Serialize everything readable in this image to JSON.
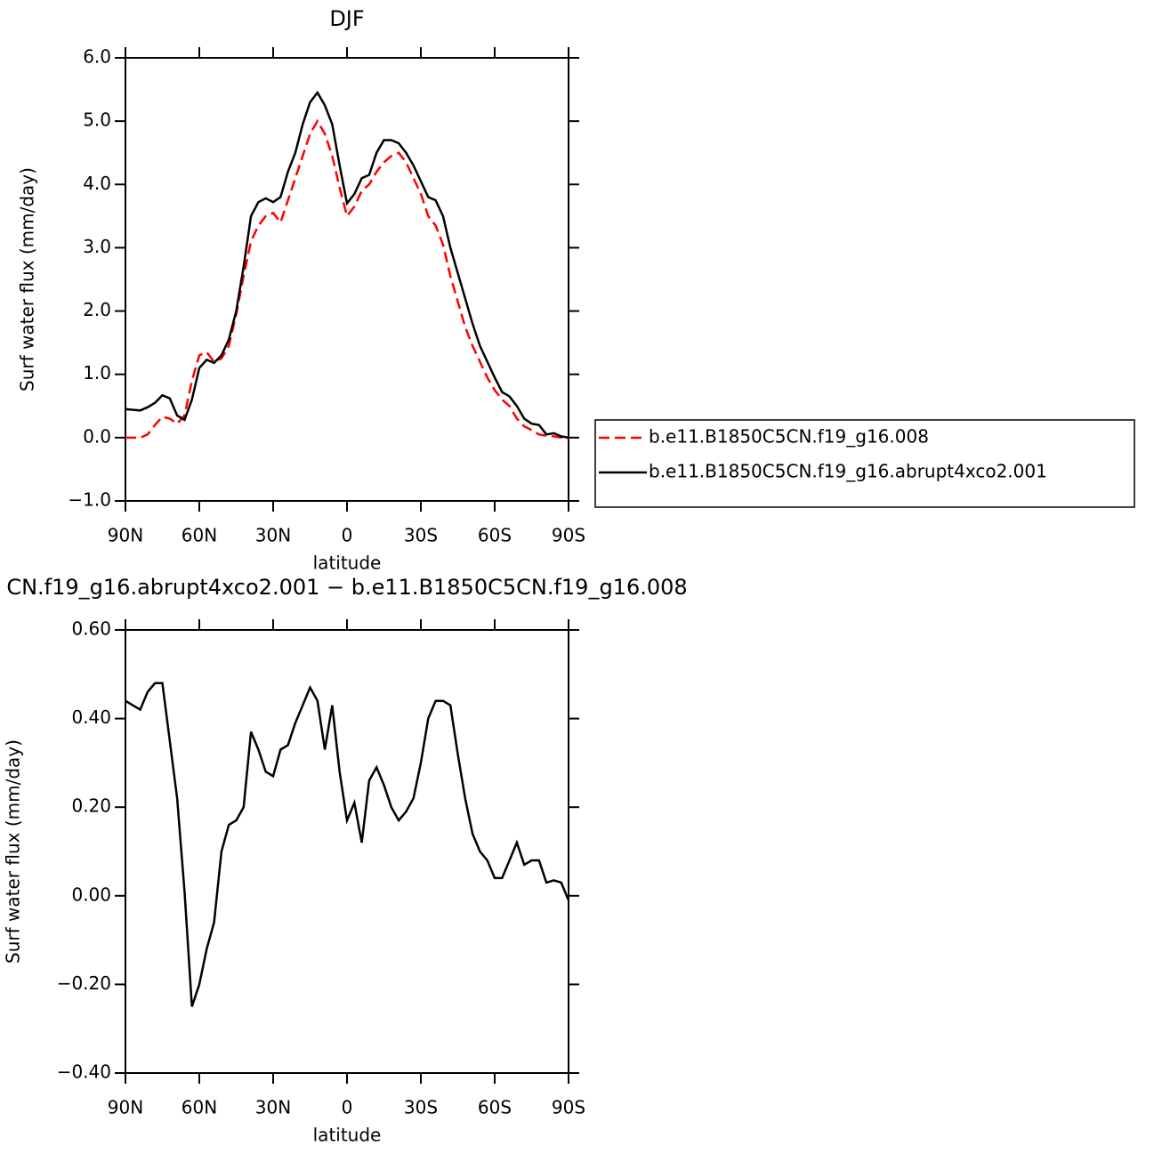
{
  "chart_data": [
    {
      "type": "line",
      "title": "DJF",
      "xlabel": "latitude",
      "ylabel": "Surf water flux (mm/day)",
      "xlim": [
        90,
        -90
      ],
      "xticks": [
        {
          "value": 90,
          "label": "90N"
        },
        {
          "value": 60,
          "label": "60N"
        },
        {
          "value": 30,
          "label": "30N"
        },
        0,
        {
          "value": -30,
          "label": "30S"
        },
        {
          "value": -60,
          "label": "60S"
        },
        {
          "value": -90,
          "label": "90S"
        }
      ],
      "ylim": [
        -1,
        6
      ],
      "yticks": [
        {
          "value": -1,
          "label": "−1.0"
        },
        {
          "value": 0,
          "label": "0.0"
        },
        {
          "value": 1,
          "label": "1.0"
        },
        {
          "value": 2,
          "label": "2.0"
        },
        {
          "value": 3,
          "label": "3.0"
        },
        {
          "value": 4,
          "label": "4.0"
        },
        {
          "value": 5,
          "label": "5.0"
        },
        {
          "value": 6,
          "label": "6.0"
        }
      ],
      "legend": "outside right",
      "x": [
        90,
        87,
        84,
        81,
        78,
        75,
        72,
        69,
        66,
        63,
        60,
        57,
        54,
        51,
        48,
        45,
        42,
        39,
        36,
        33,
        30,
        27,
        24,
        21,
        18,
        15,
        12,
        9,
        6,
        3,
        0,
        -3,
        -6,
        -9,
        -12,
        -15,
        -18,
        -21,
        -24,
        -27,
        -30,
        -33,
        -36,
        -39,
        -42,
        -45,
        -48,
        -51,
        -54,
        -57,
        -60,
        -63,
        -66,
        -69,
        -72,
        -75,
        -78,
        -81,
        -84,
        -87,
        -90
      ],
      "series": [
        {
          "name": "b.e11.B1850C5CN.f19_g16.008",
          "color": "#ff0000",
          "style": "dashed",
          "values": [
            0,
            0,
            0,
            0.05,
            0.2,
            0.33,
            0.3,
            0.22,
            0.35,
            0.9,
            1.3,
            1.35,
            1.2,
            1.25,
            1.45,
            1.95,
            2.55,
            3.1,
            3.35,
            3.5,
            3.55,
            3.4,
            3.75,
            4.1,
            4.45,
            4.8,
            5.0,
            4.8,
            4.45,
            3.95,
            3.5,
            3.65,
            3.9,
            4.0,
            4.2,
            4.35,
            4.45,
            4.5,
            4.35,
            4.1,
            3.85,
            3.5,
            3.35,
            3.05,
            2.55,
            2.15,
            1.75,
            1.45,
            1.2,
            0.95,
            0.75,
            0.6,
            0.5,
            0.3,
            0.18,
            0.12,
            0.05,
            0.03,
            0.02,
            0,
            -0.02
          ]
        },
        {
          "name": "b.e11.B1850C5CN.f19_g16.abrupt4xco2.001",
          "color": "#000000",
          "style": "solid",
          "values": [
            0.45,
            0.44,
            0.43,
            0.48,
            0.55,
            0.67,
            0.62,
            0.35,
            0.28,
            0.6,
            1.1,
            1.23,
            1.18,
            1.3,
            1.55,
            2.0,
            2.7,
            3.5,
            3.72,
            3.78,
            3.72,
            3.8,
            4.2,
            4.5,
            4.95,
            5.3,
            5.45,
            5.25,
            4.95,
            4.3,
            3.7,
            3.85,
            4.1,
            4.15,
            4.5,
            4.7,
            4.7,
            4.65,
            4.5,
            4.3,
            4.05,
            3.8,
            3.75,
            3.5,
            3.0,
            2.6,
            2.2,
            1.8,
            1.45,
            1.2,
            0.95,
            0.72,
            0.65,
            0.5,
            0.3,
            0.22,
            0.2,
            0.05,
            0.07,
            0.02,
            0
          ]
        }
      ]
    },
    {
      "type": "line",
      "title": "CN.f19_g16.abrupt4xco2.001 − b.e11.B1850C5CN.f19_g16.008",
      "xlabel": "latitude",
      "ylabel": "Surf water flux (mm/day)",
      "xlim": [
        90,
        -90
      ],
      "xticks": [
        {
          "value": 90,
          "label": "90N"
        },
        {
          "value": 60,
          "label": "60N"
        },
        {
          "value": 30,
          "label": "30N"
        },
        0,
        {
          "value": -30,
          "label": "30S"
        },
        {
          "value": -60,
          "label": "60S"
        },
        {
          "value": -90,
          "label": "90S"
        }
      ],
      "ylim": [
        -0.4,
        0.6
      ],
      "yticks": [
        {
          "value": -0.4,
          "label": "−0.40"
        },
        {
          "value": -0.2,
          "label": "−0.20"
        },
        {
          "value": 0,
          "label": "0.00"
        },
        {
          "value": 0.2,
          "label": "0.20"
        },
        {
          "value": 0.4,
          "label": "0.40"
        },
        {
          "value": 0.6,
          "label": "0.60"
        }
      ],
      "x": [
        90,
        87,
        84,
        81,
        78,
        75,
        72,
        69,
        66,
        63,
        60,
        57,
        54,
        51,
        48,
        45,
        42,
        39,
        36,
        33,
        30,
        27,
        24,
        21,
        18,
        15,
        12,
        9,
        6,
        3,
        0,
        -3,
        -6,
        -9,
        -12,
        -15,
        -18,
        -21,
        -24,
        -27,
        -30,
        -33,
        -36,
        -39,
        -42,
        -45,
        -48,
        -51,
        -54,
        -57,
        -60,
        -63,
        -66,
        -69,
        -72,
        -75,
        -78,
        -81,
        -84,
        -87,
        -90
      ],
      "series": [
        {
          "color": "#000000",
          "style": "solid",
          "values": [
            0.44,
            0.43,
            0.42,
            0.46,
            0.48,
            0.48,
            0.35,
            0.22,
            0.01,
            -0.25,
            -0.2,
            -0.12,
            -0.06,
            0.1,
            0.16,
            0.17,
            0.2,
            0.37,
            0.33,
            0.28,
            0.27,
            0.33,
            0.34,
            0.39,
            0.43,
            0.47,
            0.44,
            0.33,
            0.43,
            0.28,
            0.17,
            0.21,
            0.12,
            0.26,
            0.29,
            0.25,
            0.2,
            0.17,
            0.19,
            0.22,
            0.3,
            0.4,
            0.44,
            0.44,
            0.43,
            0.32,
            0.22,
            0.14,
            0.1,
            0.08,
            0.04,
            0.04,
            0.08,
            0.12,
            0.07,
            0.08,
            0.08,
            0.03,
            0.035,
            0.03,
            -0.01
          ]
        }
      ]
    }
  ]
}
